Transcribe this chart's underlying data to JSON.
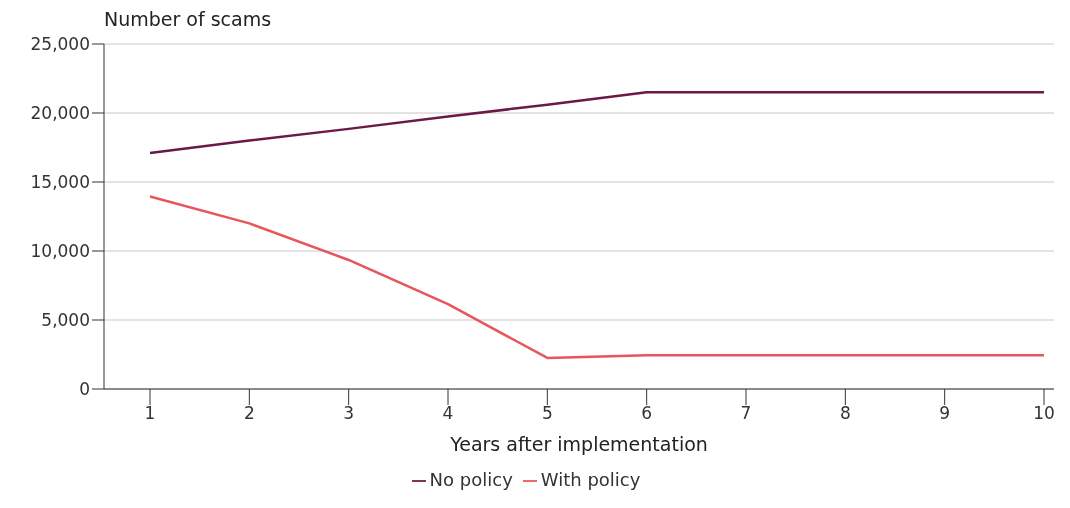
{
  "chart_data": {
    "type": "line",
    "ylabel": "Number of scams",
    "xlabel": "Years after implementation",
    "categories": [
      "1",
      "2",
      "3",
      "4",
      "5",
      "6",
      "7",
      "8",
      "9",
      "10"
    ],
    "series": [
      {
        "name": "No policy",
        "color": "#6b1a45",
        "values": [
          17100,
          18000,
          18850,
          19750,
          20600,
          21500,
          21500,
          21500,
          21500,
          21500
        ]
      },
      {
        "name": "With policy",
        "color": "#e8555a",
        "values": [
          13950,
          12000,
          9350,
          6150,
          2250,
          2450,
          2450,
          2450,
          2450,
          2450
        ]
      }
    ],
    "ylim": [
      0,
      25000
    ],
    "yticks": [
      0,
      {
        "value": 5000,
        "label": "5,000"
      },
      {
        "value": 10000,
        "label": "10,000"
      },
      {
        "value": 15000,
        "label": "15,000"
      },
      {
        "value": 20000,
        "label": "20,000"
      },
      {
        "value": 25000,
        "label": "25,000"
      }
    ],
    "grid": "y",
    "legend": "bottom",
    "marker": "none",
    "line_style": "solid"
  }
}
